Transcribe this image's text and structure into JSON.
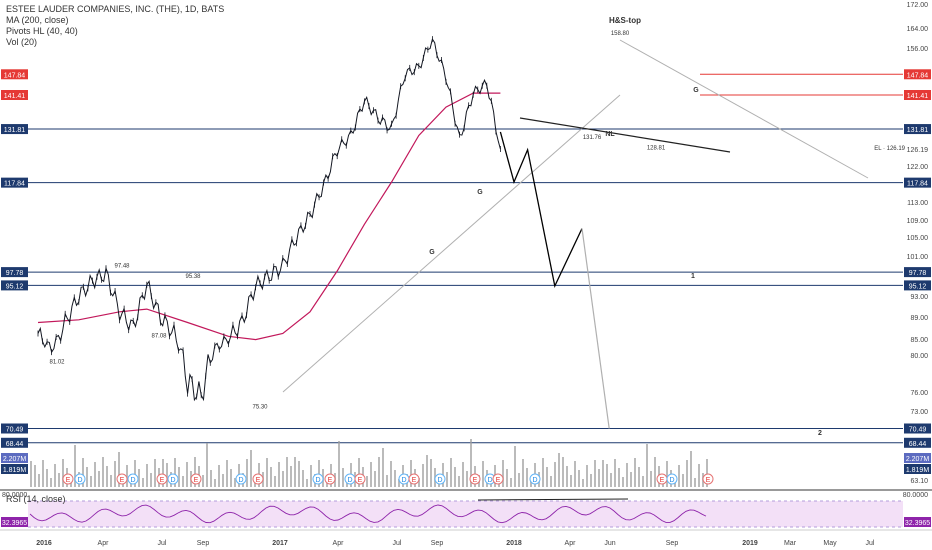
{
  "header": {
    "title": "ESTEE LAUDER COMPANIES, INC. (THE), 1D, BATS",
    "indicators": [
      "MA (200, close)",
      "Pivots HL (40, 40)",
      "Vol (20)"
    ]
  },
  "colors": {
    "price": "#131722",
    "ma": "#c2185b",
    "blue_line": "#1e3a6e",
    "red_line": "#e53935",
    "trend": "#b0b0b0",
    "rsi": "#8e24aa",
    "rsi_band": "#f3e0f7",
    "volume": "#9e9e9e",
    "vol_ma": "#90caf9"
  },
  "chart_data": {
    "type": "line",
    "x_axis_labels": [
      "2016",
      "Apr",
      "Jul",
      "Sep",
      "2017",
      "Apr",
      "Jul",
      "Sep",
      "2018",
      "Apr",
      "Jun",
      "Sep",
      "2019",
      "Mar",
      "May",
      "Jul"
    ],
    "y_axis_ticks": [
      172.0,
      164.0,
      156.0,
      141.41,
      126.19,
      122.0,
      113.0,
      109.0,
      105.0,
      101.0,
      93.0,
      89.0,
      85.0,
      80.0,
      76.0,
      73.0,
      63.1
    ],
    "y_axis_badges": [
      {
        "value": "147.84",
        "color": "#e53935"
      },
      {
        "value": "141.41",
        "color": "#e53935"
      },
      {
        "value": "131.81",
        "color": "#1e3a6e"
      },
      {
        "value": "117.84",
        "color": "#1e3a6e"
      },
      {
        "value": "97.78",
        "color": "#1e3a6e"
      },
      {
        "value": "95.12",
        "color": "#1e3a6e"
      },
      {
        "value": "70.49",
        "color": "#1e3a6e"
      },
      {
        "value": "68.44",
        "color": "#1e3a6e"
      },
      {
        "value": "2.207M",
        "color": "#5c6bc0"
      },
      {
        "value": "1.819M",
        "color": "#1e3a6e"
      }
    ],
    "price_series": [
      {
        "date": "2016-01",
        "value": 86
      },
      {
        "date": "2016-02",
        "value": 82
      },
      {
        "date": "2016-03",
        "value": 88
      },
      {
        "date": "2016-04",
        "value": 93
      },
      {
        "date": "2016-05",
        "value": 96
      },
      {
        "date": "2016-06",
        "value": 97.48
      },
      {
        "date": "2016-07",
        "value": 90
      },
      {
        "date": "2016-08",
        "value": 87.08
      },
      {
        "date": "2016-09",
        "value": 95.38
      },
      {
        "date": "2016-10",
        "value": 89
      },
      {
        "date": "2016-11",
        "value": 86
      },
      {
        "date": "2016-12",
        "value": 77
      },
      {
        "date": "2017-01",
        "value": 75.3
      },
      {
        "date": "2017-02",
        "value": 82
      },
      {
        "date": "2017-03",
        "value": 85
      },
      {
        "date": "2017-04",
        "value": 88
      },
      {
        "date": "2017-05",
        "value": 95
      },
      {
        "date": "2017-06",
        "value": 97
      },
      {
        "date": "2017-07",
        "value": 99
      },
      {
        "date": "2017-08",
        "value": 105
      },
      {
        "date": "2017-09",
        "value": 110
      },
      {
        "date": "2017-10",
        "value": 117
      },
      {
        "date": "2017-11",
        "value": 126
      },
      {
        "date": "2017-12",
        "value": 130
      },
      {
        "date": "2018-01",
        "value": 140
      },
      {
        "date": "2018-02",
        "value": 135
      },
      {
        "date": "2018-03",
        "value": 131.76
      },
      {
        "date": "2018-04",
        "value": 148
      },
      {
        "date": "2018-05",
        "value": 150
      },
      {
        "date": "2018-06",
        "value": 158.8
      },
      {
        "date": "2018-07",
        "value": 147
      },
      {
        "date": "2018-08",
        "value": 128.81
      },
      {
        "date": "2018-09",
        "value": 142
      },
      {
        "date": "2018-10",
        "value": 145
      },
      {
        "date": "2018-11",
        "value": 126.19
      }
    ],
    "ma_series": [
      {
        "date": "2016-01",
        "value": 88
      },
      {
        "date": "2016-04",
        "value": 88.5
      },
      {
        "date": "2016-07",
        "value": 90
      },
      {
        "date": "2016-09",
        "value": 90.5
      },
      {
        "date": "2016-12",
        "value": 88
      },
      {
        "date": "2017-03",
        "value": 85.5
      },
      {
        "date": "2017-05",
        "value": 84.8
      },
      {
        "date": "2017-07",
        "value": 86
      },
      {
        "date": "2017-09",
        "value": 90
      },
      {
        "date": "2017-11",
        "value": 98
      },
      {
        "date": "2018-01",
        "value": 108
      },
      {
        "date": "2018-03",
        "value": 118
      },
      {
        "date": "2018-05",
        "value": 130
      },
      {
        "date": "2018-07",
        "value": 138
      },
      {
        "date": "2018-09",
        "value": 142
      },
      {
        "date": "2018-11",
        "value": 142
      }
    ],
    "pivot_labels": [
      "97.48",
      "95.38",
      "87.08",
      "81.02",
      "75.30",
      "131.76",
      "128.81",
      "158.80"
    ],
    "annotations": [
      "H&S-top",
      "NL",
      "G",
      "G",
      "G",
      "1",
      "2",
      "EL · 126.19"
    ],
    "projection_path": [
      {
        "date": "2018-11",
        "value": 131
      },
      {
        "date": "2018-12",
        "value": 118
      },
      {
        "date": "2019-01",
        "value": 126
      },
      {
        "date": "2019-03",
        "value": 95
      },
      {
        "date": "2019-05",
        "value": 107
      },
      {
        "date": "2019-07",
        "value": 70.49
      }
    ],
    "rsi": {
      "label": "RSI (14, close)",
      "current": "32.3965",
      "upper": "80.0000",
      "lower": "32.3965"
    },
    "event_markers": [
      "E",
      "D",
      "E",
      "D",
      "E",
      "D",
      "E",
      "D",
      "E",
      "D",
      "E",
      "D",
      "E",
      "D",
      "E",
      "D",
      "E",
      "D",
      "E",
      "D",
      "E",
      "D",
      "E"
    ]
  }
}
